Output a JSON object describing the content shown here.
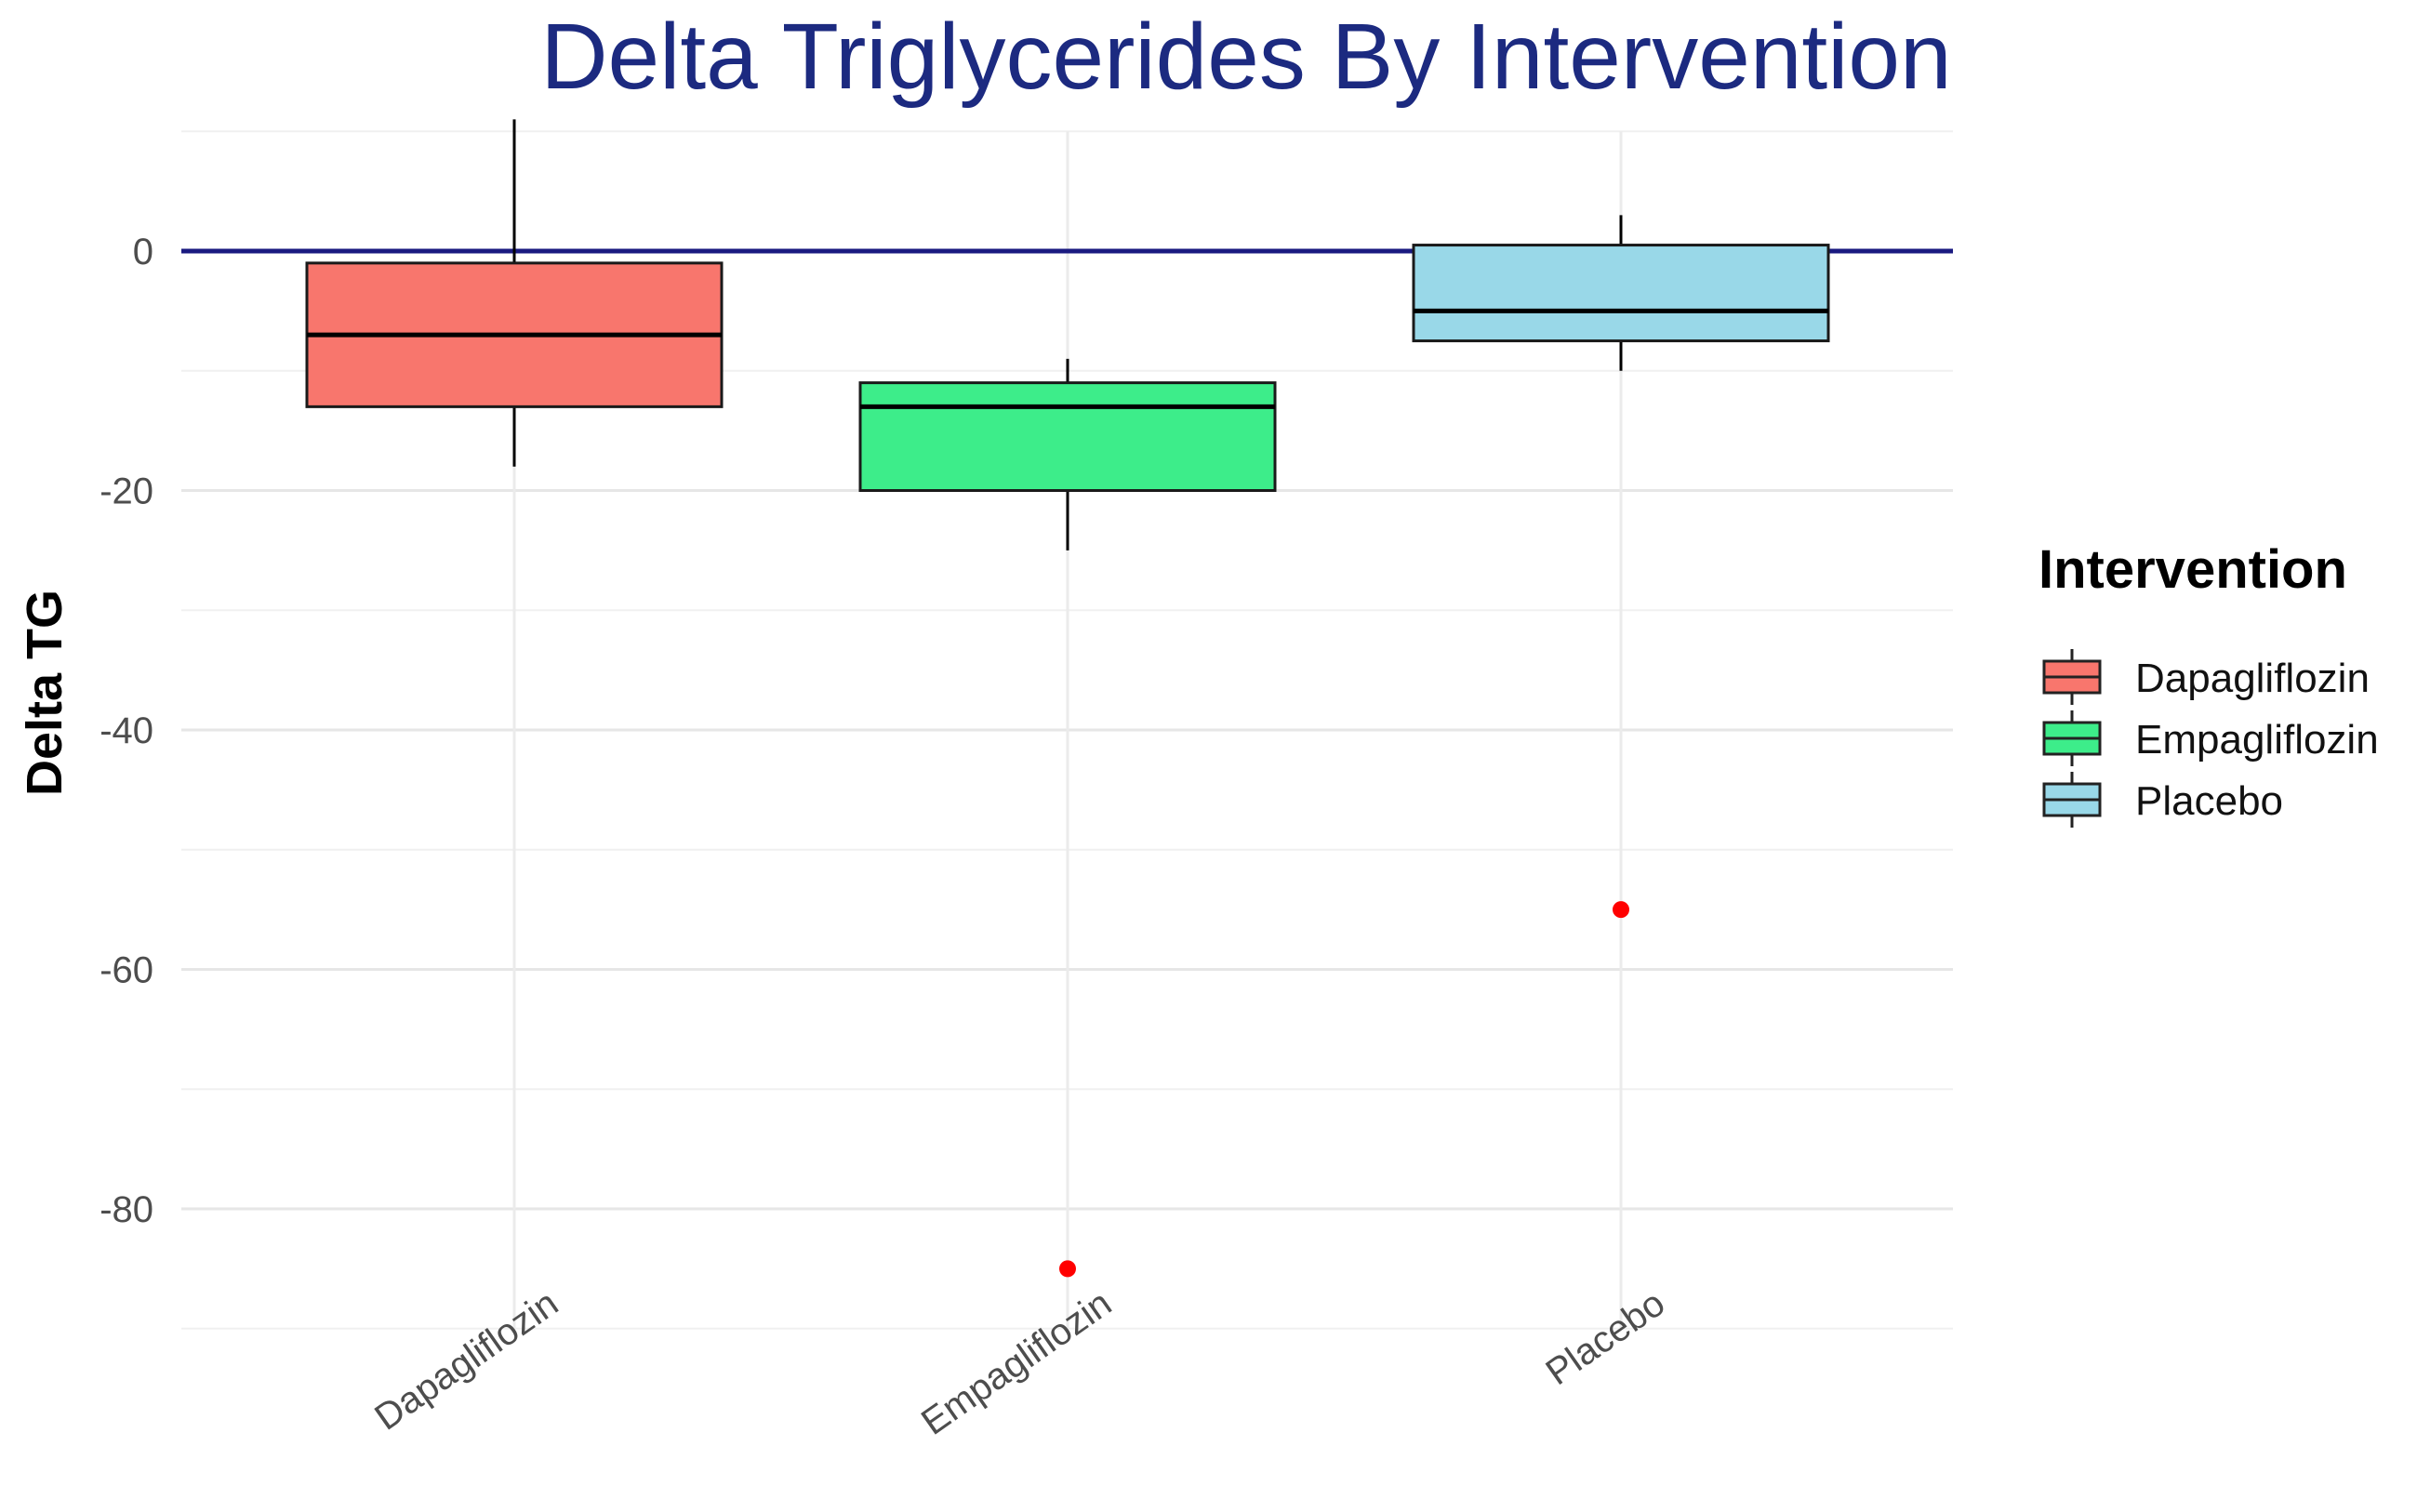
{
  "chart_data": {
    "type": "boxplot",
    "title": "Delta Triglycerides By Intervention",
    "xlabel": "",
    "ylabel": "Delta TG",
    "ylim": [
      -90,
      10
    ],
    "yticks": [
      0,
      -20,
      -40,
      -60,
      -80
    ],
    "grid": true,
    "reference_line": {
      "y": 0,
      "color": "#1a1a80"
    },
    "categories": [
      "Dapagliflozin",
      "Empagliflozin",
      "Placebo"
    ],
    "series": [
      {
        "name": "Dapagliflozin",
        "color": "#f8766d",
        "whisker_low": -18,
        "q1": -13,
        "median": -7,
        "q3": -1,
        "whisker_high": 11,
        "outliers": []
      },
      {
        "name": "Empagliflozin",
        "color": "#3ded8a",
        "whisker_low": -25,
        "q1": -20,
        "median": -13,
        "q3": -11,
        "whisker_high": -9,
        "outliers": [
          -85
        ]
      },
      {
        "name": "Placebo",
        "color": "#99d8e8",
        "whisker_low": -10,
        "q1": -7.5,
        "median": -5,
        "q3": 0.5,
        "whisker_high": 3,
        "outliers": [
          -55
        ]
      }
    ],
    "outlier_color": "#ff0000",
    "legend": {
      "title": "Intervention",
      "position": "right",
      "entries": [
        "Dapagliflozin",
        "Empagliflozin",
        "Placebo"
      ]
    }
  }
}
